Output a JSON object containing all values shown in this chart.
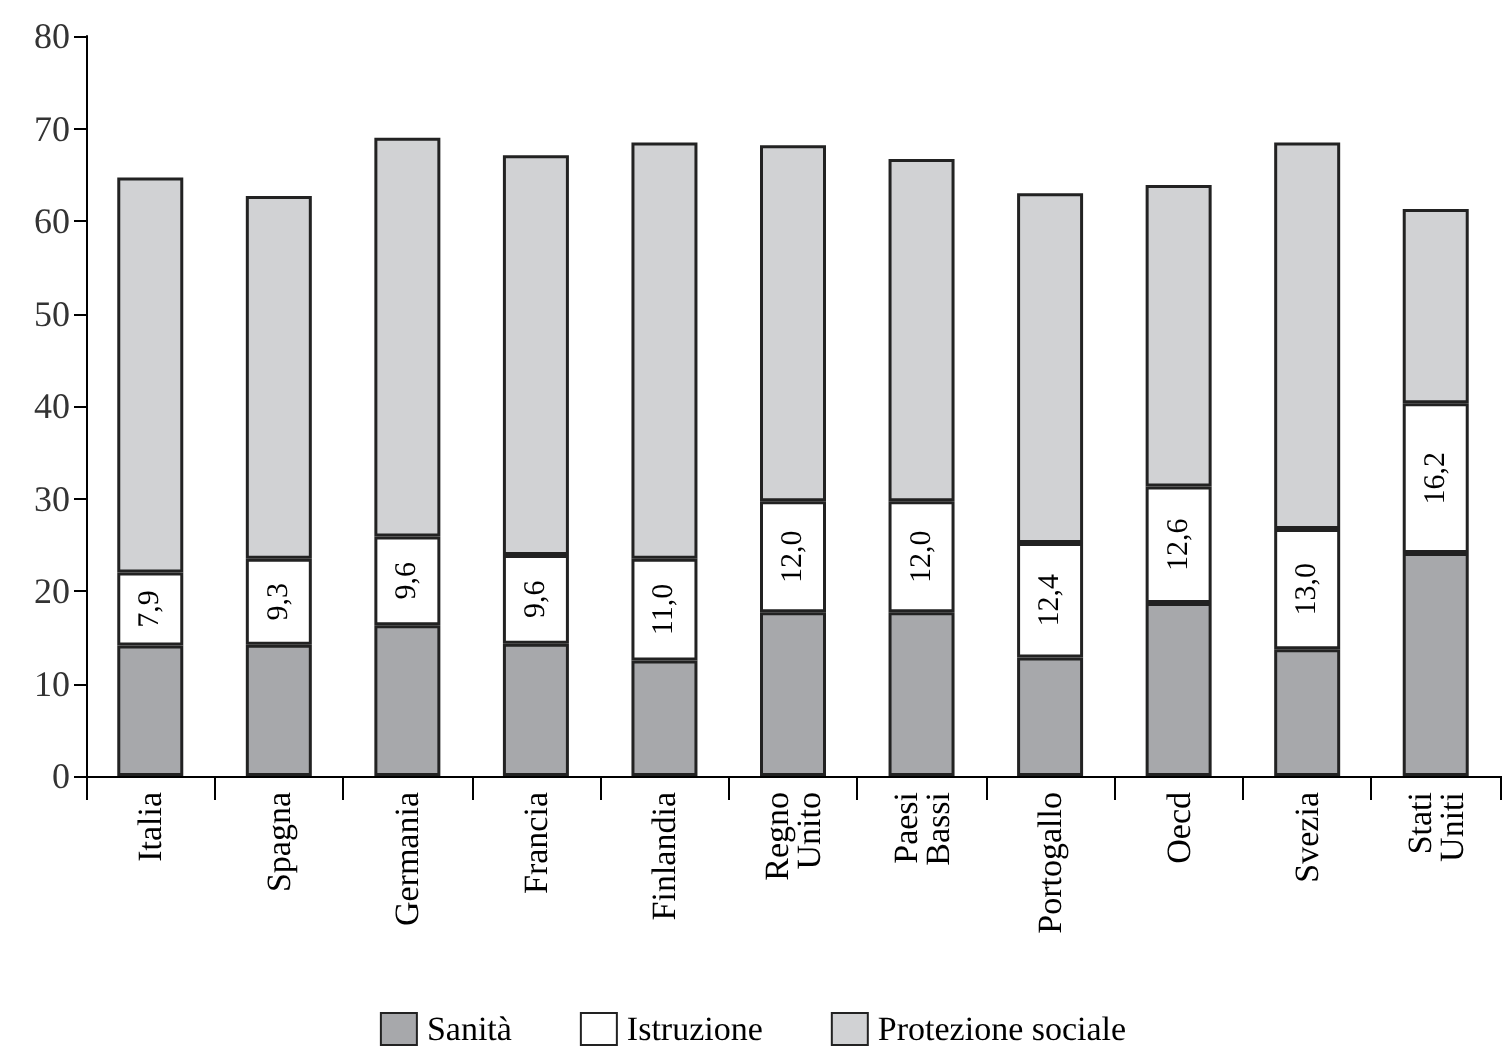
{
  "chart_data": {
    "type": "bar",
    "stacked": true,
    "categories": [
      "Italia",
      "Spagna",
      "Germania",
      "Francia",
      "Finlandia",
      "Regno Unito",
      "Paesi Bassi",
      "Portogallo",
      "Oecd",
      "Svezia",
      "Stati Uniti"
    ],
    "series": [
      {
        "name": "Sanità",
        "color": "#a7a8ab",
        "values": [
          14.1,
          14.2,
          16.3,
          14.3,
          12.5,
          17.7,
          17.7,
          12.8,
          18.7,
          13.7,
          24.1
        ]
      },
      {
        "name": "Istruzione",
        "color": "#ffffff",
        "values": [
          7.9,
          9.3,
          9.6,
          9.6,
          11.0,
          12.0,
          12.0,
          12.4,
          12.6,
          13.0,
          16.2
        ],
        "value_labels": [
          "7,9",
          "9,3",
          "9,6",
          "9,6",
          "11,0",
          "12,0",
          "12,0",
          "12,4",
          "12,6",
          "13,0",
          "16,2"
        ]
      },
      {
        "name": "Protezione sociale",
        "color": "#d1d2d4",
        "values": [
          42.7,
          39.2,
          43.1,
          43.2,
          45.0,
          38.5,
          37.0,
          37.8,
          32.6,
          41.8,
          21.0
        ]
      }
    ],
    "ylim": [
      0,
      80
    ],
    "yticks": [
      0,
      10,
      20,
      30,
      40,
      50,
      60,
      70,
      80
    ],
    "grid": false,
    "legend": "bottom"
  }
}
